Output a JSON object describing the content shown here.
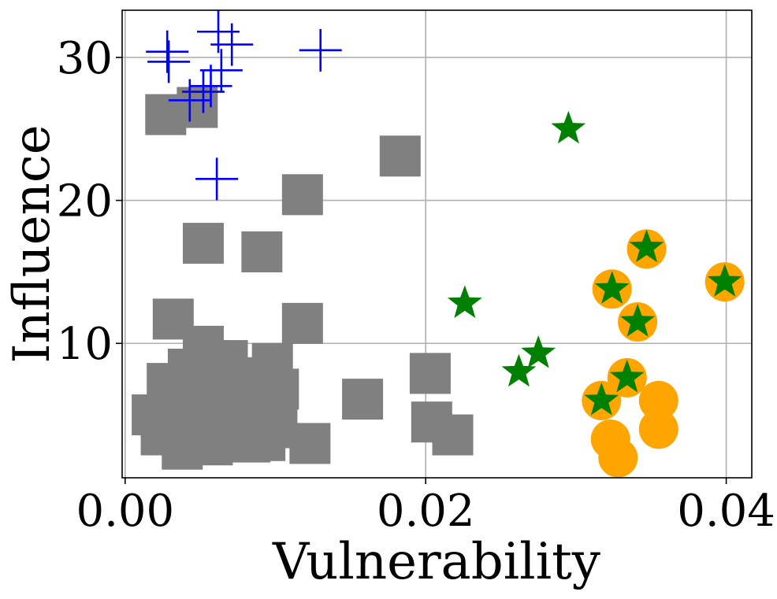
{
  "chart_data": {
    "type": "scatter",
    "title": "",
    "xlabel": "Vulnerability",
    "ylabel": "Influence",
    "xlim": [
      -0.0002,
      0.0417
    ],
    "ylim": [
      0.6,
      33.3
    ],
    "xticks": [
      0.0,
      0.02,
      0.04
    ],
    "xtick_labels": [
      "0.00",
      "0.02",
      "0.04"
    ],
    "yticks": [
      10,
      20,
      30
    ],
    "ytick_labels": [
      "10",
      "20",
      "30"
    ],
    "grid": true,
    "colors": {
      "square": "#808080",
      "plus": "#0000ff",
      "circle": "#ffa500",
      "star": "#008000"
    },
    "series": [
      {
        "name": "square-group",
        "marker": "square",
        "points": [
          [
            0.0027,
            26.0
          ],
          [
            0.0048,
            26.5
          ],
          [
            0.0183,
            23.1
          ],
          [
            0.0118,
            20.4
          ],
          [
            0.0052,
            17.0
          ],
          [
            0.0091,
            16.4
          ],
          [
            0.0032,
            11.7
          ],
          [
            0.0118,
            11.4
          ],
          [
            0.0052,
            9.8
          ],
          [
            0.0068,
            8.8
          ],
          [
            0.0098,
            8.6
          ],
          [
            0.0042,
            8.2
          ],
          [
            0.0058,
            8.0
          ],
          [
            0.0078,
            7.6
          ],
          [
            0.0028,
            7.2
          ],
          [
            0.0102,
            6.8
          ],
          [
            0.0072,
            6.6
          ],
          [
            0.0048,
            6.4
          ],
          [
            0.0158,
            6.1
          ],
          [
            0.0038,
            5.8
          ],
          [
            0.0062,
            5.6
          ],
          [
            0.0085,
            5.4
          ],
          [
            0.0018,
            5.0
          ],
          [
            0.0032,
            4.8
          ],
          [
            0.0052,
            4.5
          ],
          [
            0.0075,
            4.4
          ],
          [
            0.0101,
            4.1
          ],
          [
            0.0203,
            7.9
          ],
          [
            0.0204,
            4.5
          ],
          [
            0.0218,
            3.6
          ],
          [
            0.0024,
            3.6
          ],
          [
            0.0044,
            3.4
          ],
          [
            0.0066,
            3.3
          ],
          [
            0.0093,
            3.2
          ],
          [
            0.0123,
            3.0
          ],
          [
            0.0038,
            2.6
          ],
          [
            0.0058,
            2.9
          ],
          [
            0.0083,
            3.1
          ]
        ]
      },
      {
        "name": "plus-group",
        "marker": "plus",
        "points": [
          [
            0.0028,
            30.4
          ],
          [
            0.0029,
            29.7
          ],
          [
            0.0062,
            31.8
          ],
          [
            0.0071,
            30.9
          ],
          [
            0.013,
            30.5
          ],
          [
            0.0064,
            29.1
          ],
          [
            0.0057,
            28.0
          ],
          [
            0.0052,
            27.6
          ],
          [
            0.0043,
            27.0
          ],
          [
            0.0061,
            21.5
          ]
        ]
      },
      {
        "name": "circle-group",
        "marker": "circle",
        "points": [
          [
            0.0347,
            16.6
          ],
          [
            0.0399,
            14.3
          ],
          [
            0.0324,
            13.8
          ],
          [
            0.0341,
            11.5
          ],
          [
            0.0334,
            7.6
          ],
          [
            0.0355,
            6.0
          ],
          [
            0.0317,
            6.0
          ],
          [
            0.0355,
            4.0
          ],
          [
            0.0323,
            3.3
          ],
          [
            0.0328,
            2.0
          ]
        ]
      },
      {
        "name": "star-group",
        "marker": "star",
        "points": [
          [
            0.0295,
            25.0
          ],
          [
            0.0347,
            16.7
          ],
          [
            0.0399,
            14.3
          ],
          [
            0.0324,
            13.8
          ],
          [
            0.0226,
            12.8
          ],
          [
            0.0341,
            11.5
          ],
          [
            0.0275,
            9.3
          ],
          [
            0.0262,
            8.0
          ],
          [
            0.0334,
            7.6
          ],
          [
            0.0317,
            6.0
          ]
        ]
      }
    ]
  }
}
